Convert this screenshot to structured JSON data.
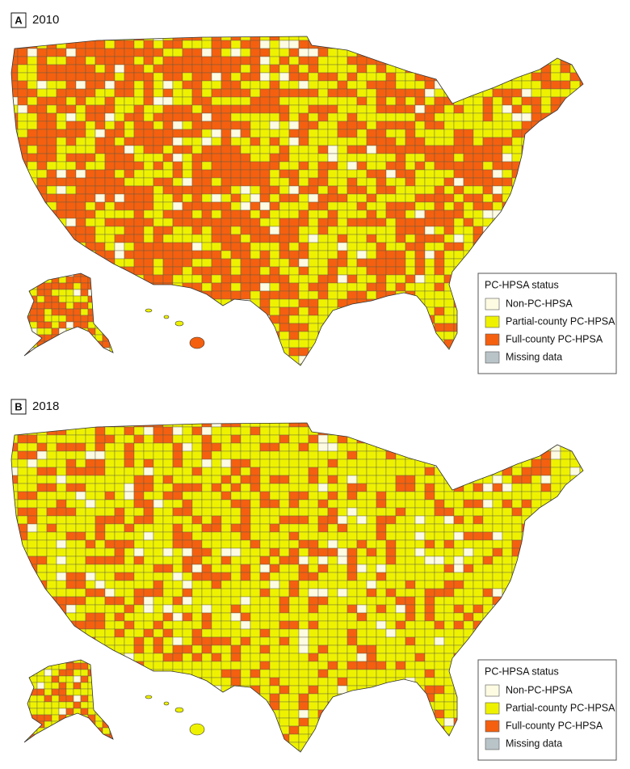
{
  "panels": [
    {
      "label": "A",
      "year": "2010",
      "legend": {
        "title": "PC-HPSA status",
        "items": [
          {
            "label": "Non-PC-HPSA",
            "color": "#fdfbe2"
          },
          {
            "label": "Partial-county PC-HPSA",
            "color": "#eef200"
          },
          {
            "label": "Full-county PC-HPSA",
            "color": "#f4600f"
          },
          {
            "label": "Missing data",
            "color": "#b9c4c8"
          }
        ]
      }
    },
    {
      "label": "B",
      "year": "2018",
      "legend": {
        "title": "PC-HPSA status",
        "items": [
          {
            "label": "Non-PC-HPSA",
            "color": "#fdfbe2"
          },
          {
            "label": "Partial-county PC-HPSA",
            "color": "#eef200"
          },
          {
            "label": "Full-county PC-HPSA",
            "color": "#f4600f"
          },
          {
            "label": "Missing data",
            "color": "#b9c4c8"
          }
        ]
      }
    }
  ]
}
